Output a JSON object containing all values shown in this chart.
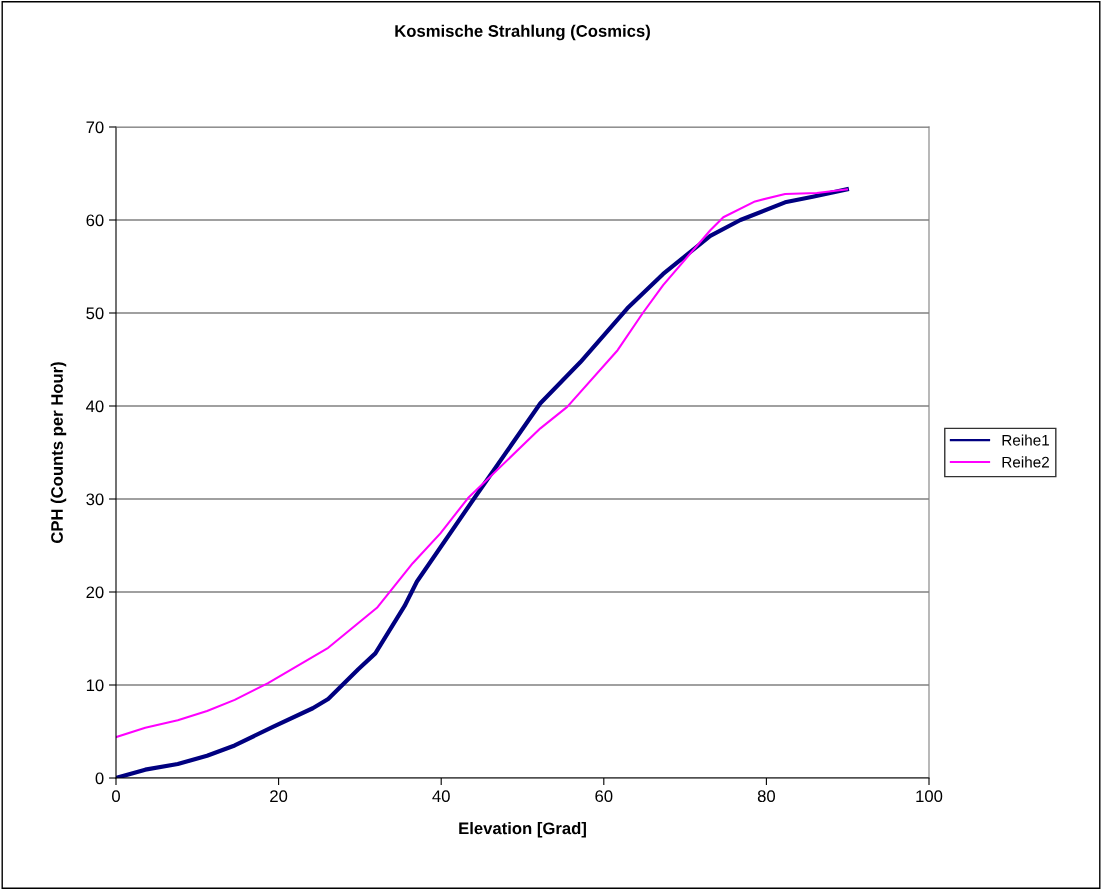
{
  "chart_data": {
    "type": "line",
    "title": "Kosmische Strahlung (Cosmics)",
    "xlabel": "Elevation [Grad]",
    "ylabel": "CPH (Counts per Hour)",
    "xlim": [
      0,
      100
    ],
    "xticks": [
      0,
      20,
      40,
      60,
      80,
      100
    ],
    "ylim": [
      0,
      70
    ],
    "yticks": [
      0,
      10,
      20,
      30,
      40,
      50,
      60,
      70
    ],
    "grid": "y",
    "legend": "right",
    "marker": "none",
    "line_style": "solid",
    "series": [
      {
        "name": "Reihe1",
        "color": "#000080",
        "x": [
          0,
          3.6,
          7.6,
          11.2,
          14.6,
          19.3,
          24.2,
          26.1,
          29.8,
          31.9,
          35.5,
          37,
          44,
          52.2,
          57.1,
          62.9,
          67.3,
          73.1,
          76.8,
          82.3,
          85.7,
          89.9
        ],
        "values": [
          0,
          0.9,
          1.5,
          2.4,
          3.5,
          5.5,
          7.5,
          8.5,
          11.7,
          13.4,
          18.5,
          21.1,
          30,
          40.3,
          44.7,
          50.5,
          54.2,
          58.3,
          60,
          61.9,
          62.5,
          63.3
        ]
      },
      {
        "name": "Reihe2",
        "color": "#ff00ff",
        "x": [
          0,
          3.6,
          7.6,
          11.2,
          14.6,
          18.7,
          26.1,
          32.1,
          36.5,
          39.9,
          43.3,
          52.2,
          55.5,
          61.7,
          64.8,
          67.3,
          73.1,
          74.7,
          78.6,
          82.3,
          86.2,
          89.9
        ],
        "values": [
          4.4,
          5.4,
          6.2,
          7.2,
          8.4,
          10.2,
          14,
          18.3,
          23.1,
          26.3,
          30.1,
          37.6,
          39.9,
          46,
          50,
          53,
          58.9,
          60.3,
          62,
          62.8,
          62.9,
          63.3
        ]
      }
    ]
  }
}
